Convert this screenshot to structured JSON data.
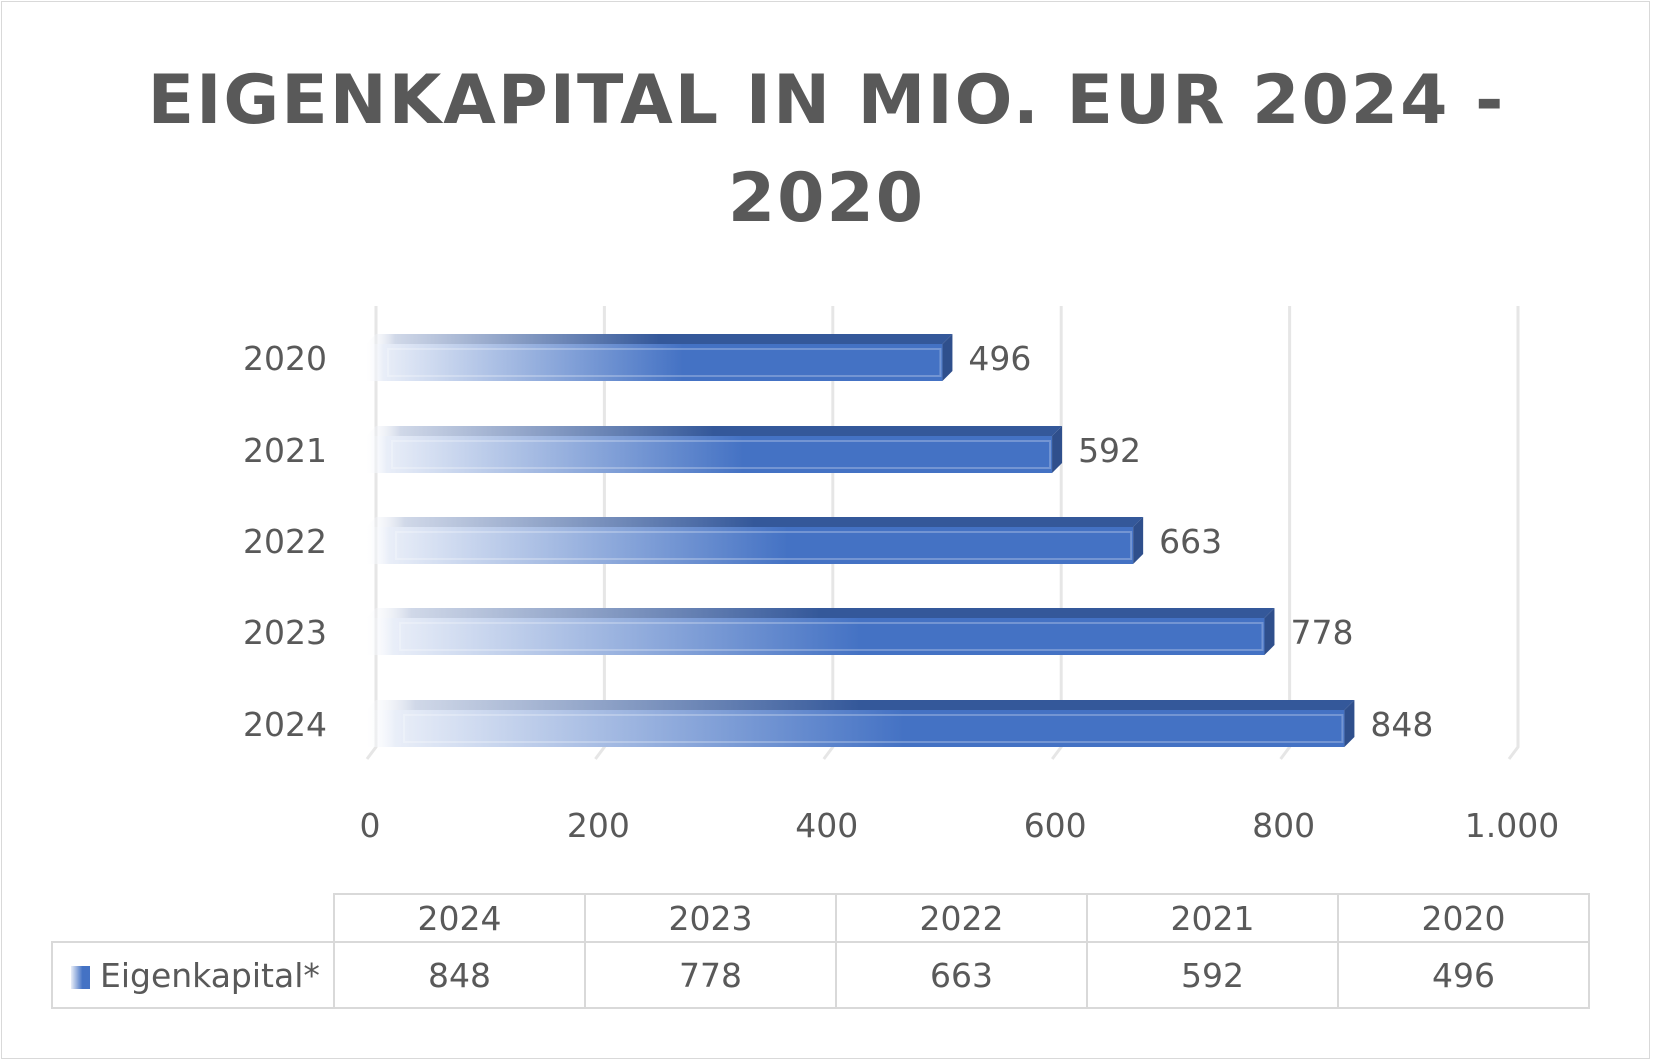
{
  "chart_data": {
    "type": "bar",
    "orientation": "horizontal",
    "style": "3d-gradient",
    "title": "EIGENKAPITAL IN MIO. EUR 2024 - 2020",
    "title_lines": [
      "EIGENKAPITAL IN MIO. EUR 2024 -",
      "2020"
    ],
    "categories": [
      "2020",
      "2021",
      "2022",
      "2023",
      "2024"
    ],
    "series": [
      {
        "name": "Eigenkapital*",
        "values": [
          496,
          592,
          663,
          778,
          848
        ],
        "color": "#4472c4"
      }
    ],
    "data_labels": [
      "496",
      "592",
      "663",
      "778",
      "848"
    ],
    "xlim": [
      0,
      1000
    ],
    "x_ticks": [
      0,
      200,
      400,
      600,
      800,
      1000
    ],
    "x_tick_labels": [
      "0",
      "200",
      "400",
      "600",
      "800",
      "1.000"
    ],
    "grid": true,
    "xlabel": "",
    "ylabel": "",
    "data_table": {
      "headers": [
        "2024",
        "2023",
        "2022",
        "2021",
        "2020"
      ],
      "row_label": "Eigenkapital*",
      "values": [
        "848",
        "778",
        "663",
        "592",
        "496"
      ]
    }
  }
}
